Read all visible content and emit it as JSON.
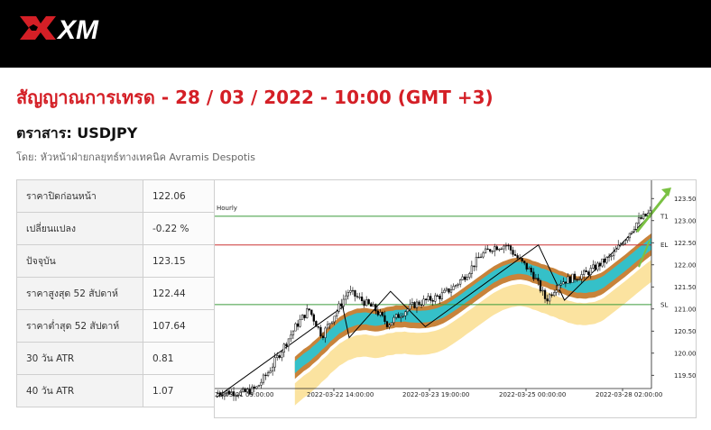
{
  "header": {
    "brand": "XM"
  },
  "page": {
    "title": "สัญญาณการเทรด - 28 / 03 / 2022 - 10:00 (GMT +3)",
    "instrument": "ตราสาร: USDJPY",
    "author": "โดย: หัวหน้าฝ่ายกลยุทธ์ทางเทคนิค Avramis Despotis"
  },
  "stats": [
    {
      "label": "ราคาปิดก่อนหน้า",
      "value": "122.06"
    },
    {
      "label": "เปลี่ยนแปลง",
      "value": "-0.22 %"
    },
    {
      "label": "ปัจจุบัน",
      "value": "123.15"
    },
    {
      "label": "ราคาสูงสุด 52 สัปดาห์",
      "value": "122.44"
    },
    {
      "label": "ราคาต่ำสุด 52 สัปดาห์",
      "value": "107.64"
    },
    {
      "label": "30 วัน ATR",
      "value": "0.81"
    },
    {
      "label": "40 วัน ATR",
      "value": "1.07"
    }
  ],
  "chart_data": {
    "type": "candlestick",
    "timeframe": "Hourly",
    "ylim": [
      119.2,
      123.75
    ],
    "yticks": [
      119.5,
      120.0,
      120.5,
      121.0,
      121.5,
      122.0,
      122.5,
      123.0,
      123.5
    ],
    "ytick_labels": [
      "119.50",
      "120.00",
      "120.50",
      "121.00",
      "121.50",
      "122.00",
      "122.50",
      "123.00",
      "123.50"
    ],
    "xtick_labels": [
      "22-03-21 09:00:00",
      "2022-03-22 14:00:00",
      "2022-03-23 19:00:00",
      "2022-03-25 00:00:00",
      "2022-03-28 02:00:00"
    ],
    "levels": [
      {
        "name": "T1",
        "value": 123.1,
        "color": "#3a9a3a"
      },
      {
        "name": "EL",
        "value": 122.45,
        "color": "#cc3333"
      },
      {
        "name": "SL",
        "value": 121.1,
        "color": "#3a9a3a"
      }
    ],
    "price_path": [
      119.1,
      119.12,
      119.1,
      119.2,
      119.6,
      120.1,
      120.6,
      121.0,
      120.4,
      120.9,
      121.4,
      121.2,
      121.0,
      120.65,
      120.9,
      121.1,
      121.2,
      121.3,
      121.5,
      121.8,
      122.2,
      122.4,
      122.45,
      122.1,
      121.8,
      121.2,
      121.6,
      121.7,
      121.8,
      122.0,
      122.2,
      122.6,
      123.0,
      123.2
    ],
    "zigzag": [
      119.0,
      121.05,
      120.35,
      121.4,
      120.6,
      122.45,
      121.2,
      123.15
    ],
    "colors": {
      "bull": "#ffffff",
      "bear": "#000000",
      "band_outer": "#c8833a",
      "band_inner": "#35c0c8",
      "band_lower": "#fbe3a0",
      "arrow": "#7ac143"
    }
  }
}
